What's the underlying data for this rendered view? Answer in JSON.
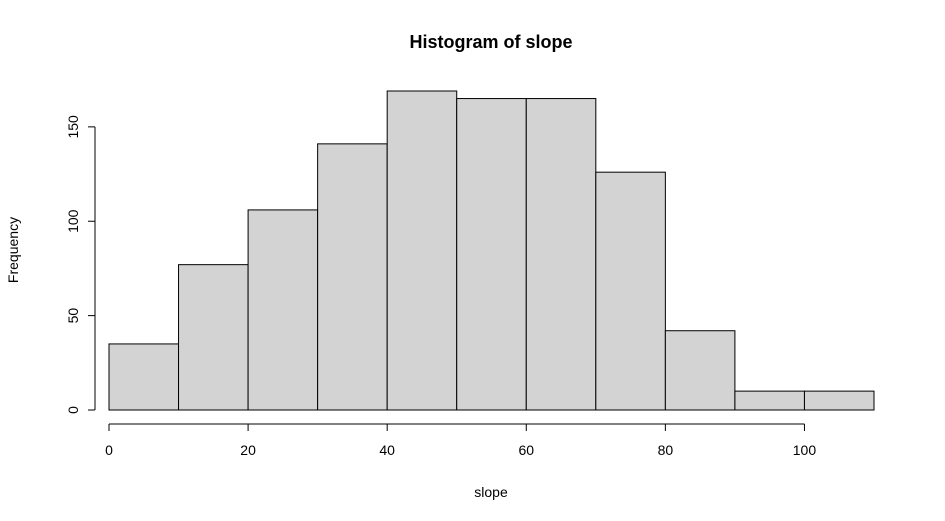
{
  "chart_data": {
    "type": "bar",
    "title": "Histogram of slope",
    "xlabel": "slope",
    "ylabel": "Frequency",
    "bins": [
      {
        "start": 0,
        "end": 10,
        "count": 35
      },
      {
        "start": 10,
        "end": 20,
        "count": 77
      },
      {
        "start": 20,
        "end": 30,
        "count": 106
      },
      {
        "start": 30,
        "end": 40,
        "count": 141
      },
      {
        "start": 40,
        "end": 50,
        "count": 169
      },
      {
        "start": 50,
        "end": 60,
        "count": 165
      },
      {
        "start": 60,
        "end": 70,
        "count": 165
      },
      {
        "start": 70,
        "end": 80,
        "count": 126
      },
      {
        "start": 80,
        "end": 90,
        "count": 42
      },
      {
        "start": 90,
        "end": 100,
        "count": 10
      },
      {
        "start": 100,
        "end": 110,
        "count": 10
      }
    ],
    "xticks": [
      0,
      20,
      40,
      60,
      80,
      100
    ],
    "yticks": [
      0,
      50,
      100,
      150
    ],
    "xlim": [
      0,
      110
    ],
    "ylim": [
      0,
      169
    ],
    "grid": false,
    "bar_fill": "#d3d3d3",
    "bar_stroke": "#000000"
  }
}
